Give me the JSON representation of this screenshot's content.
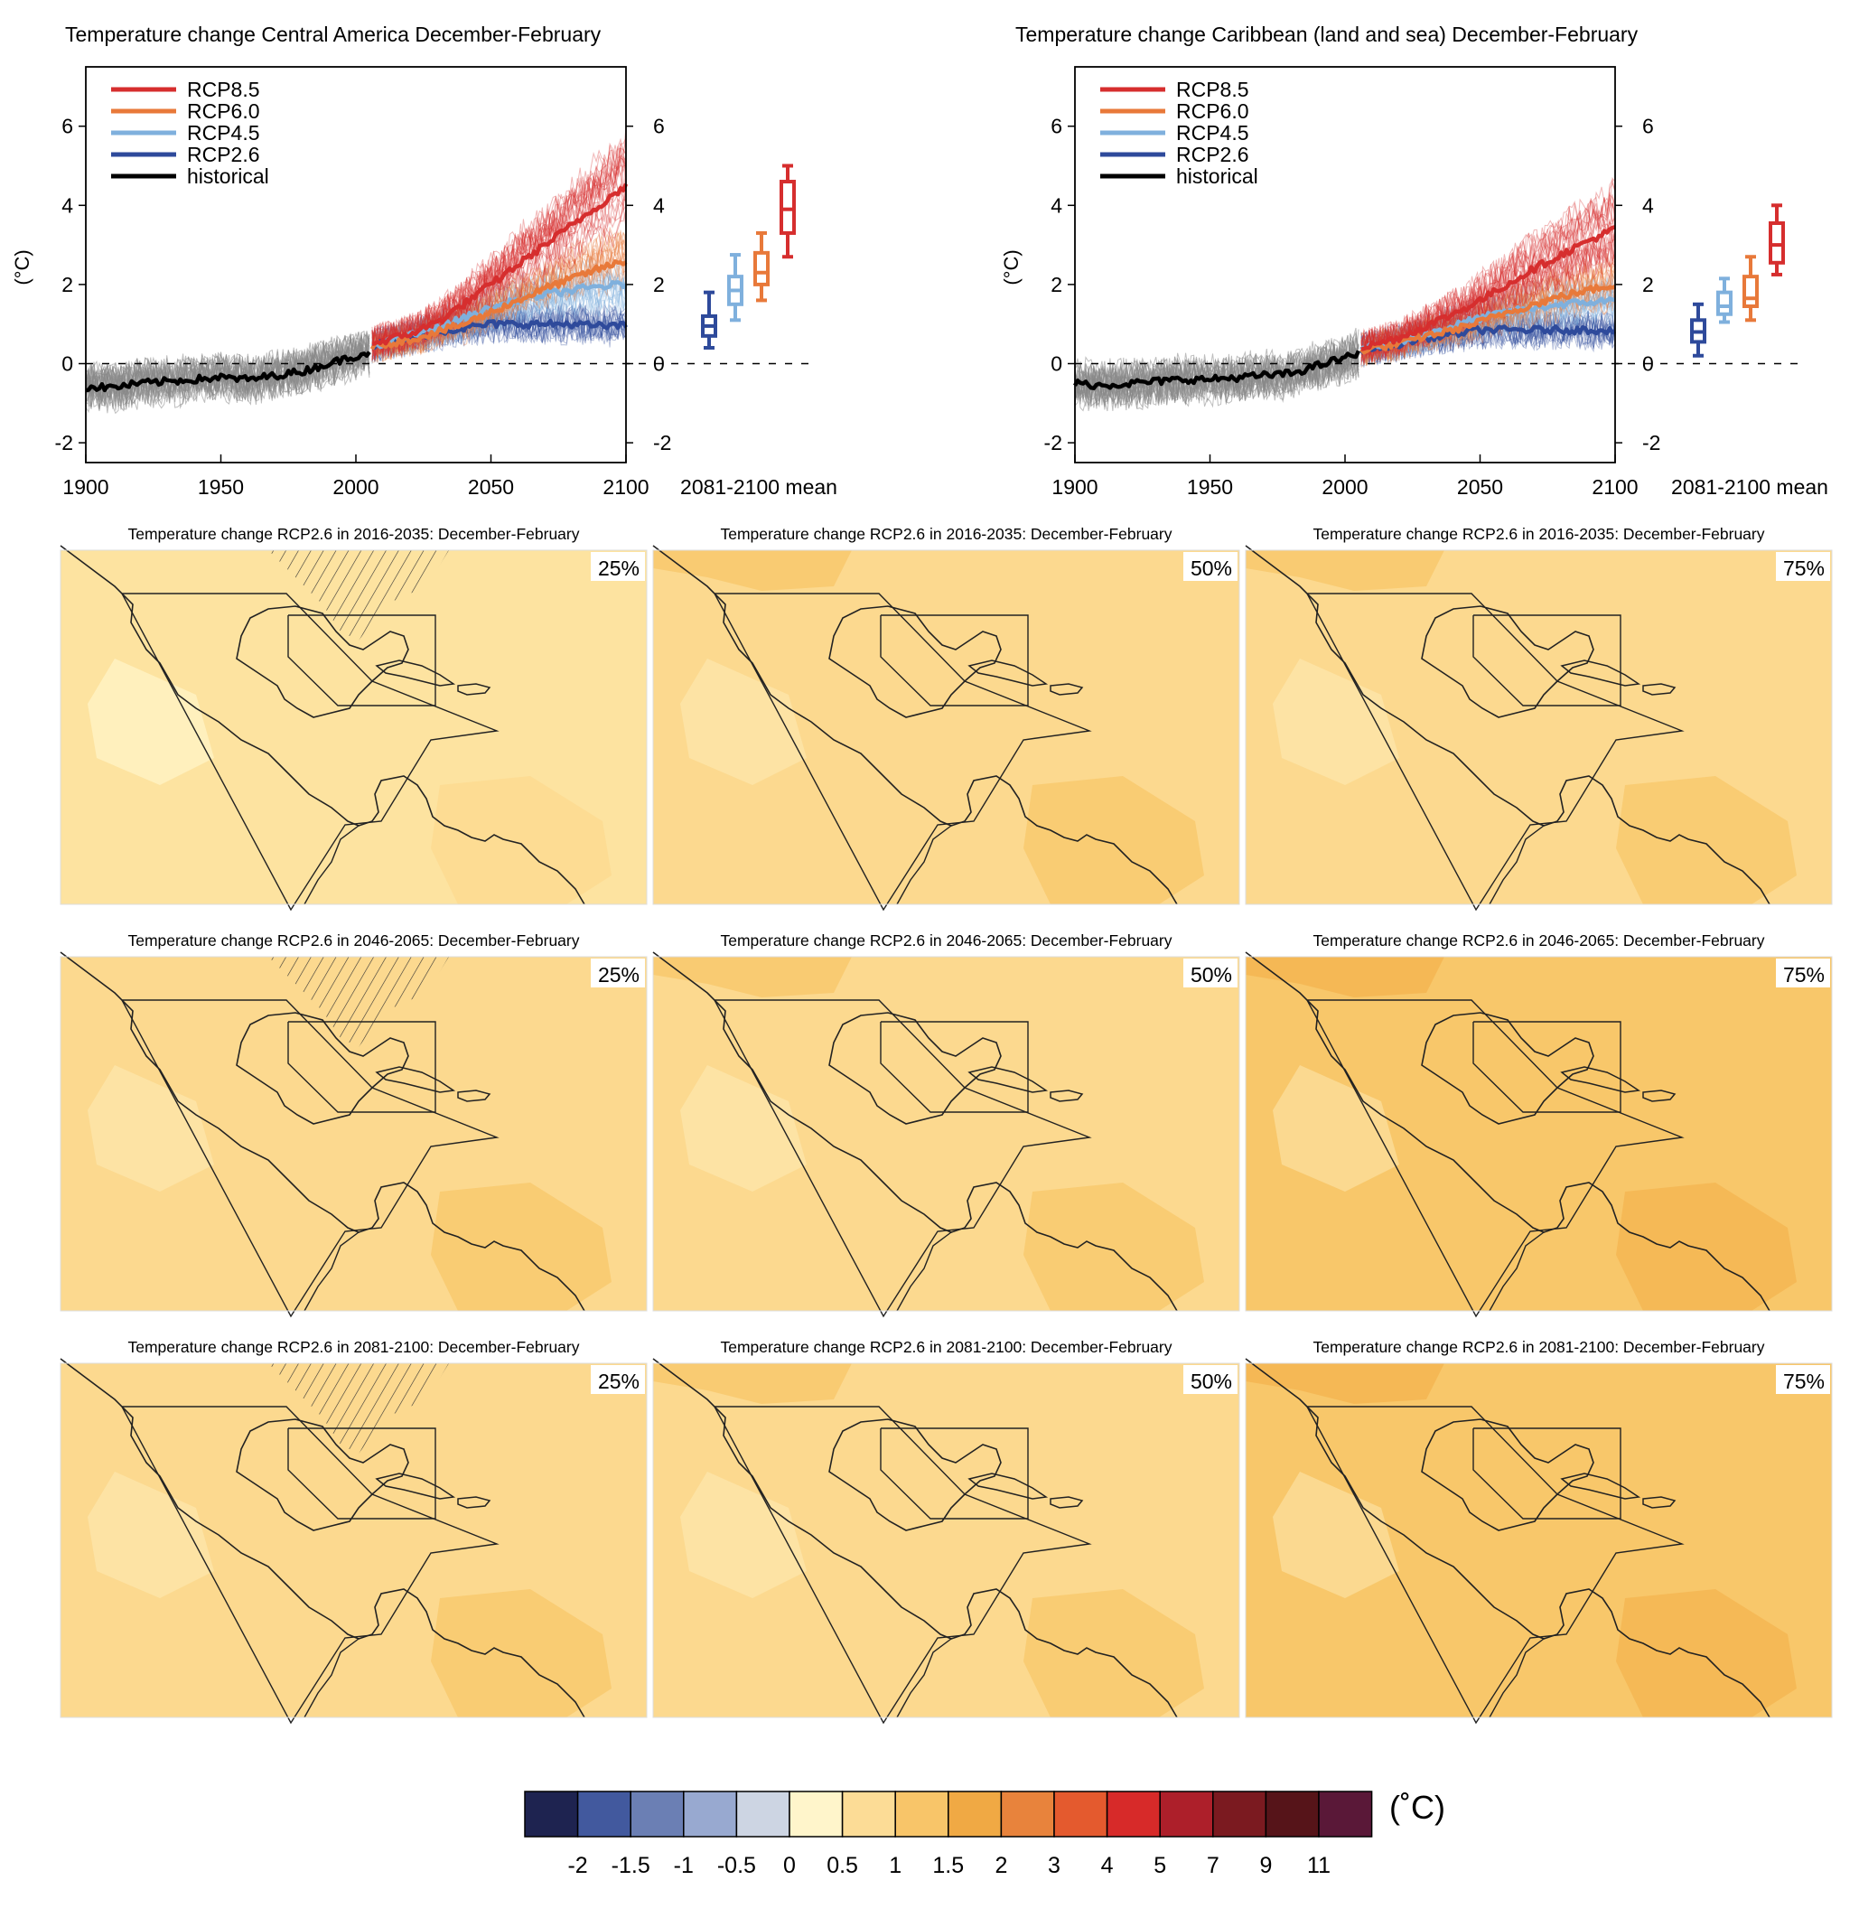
{
  "colors": {
    "rcp85": "#d62e2e",
    "rcp60": "#e8793a",
    "rcp45": "#7fb0dd",
    "rcp26": "#2e4a9b",
    "historical": "#000000",
    "model_spread": "#888888"
  },
  "chart_data": [
    {
      "type": "line",
      "title": "Temperature change Central America December-February",
      "ylabel": "(°C)",
      "xlim": [
        1900,
        2100
      ],
      "ylim": [
        -2.5,
        7.5
      ],
      "xticks": [
        1900,
        1950,
        2000,
        2050,
        2100
      ],
      "yticks": [
        -2,
        0,
        2,
        4,
        6
      ],
      "legend_position": "top-left",
      "grid": false,
      "series": [
        {
          "name": "RCP8.5",
          "key": "rcp85",
          "x": [
            2006,
            2020,
            2030,
            2040,
            2050,
            2060,
            2070,
            2080,
            2090,
            2100
          ],
          "y": [
            0.5,
            0.75,
            1.05,
            1.5,
            2.0,
            2.5,
            3.0,
            3.5,
            4.0,
            4.5
          ]
        },
        {
          "name": "RCP6.0",
          "key": "rcp60",
          "x": [
            2006,
            2020,
            2030,
            2040,
            2050,
            2060,
            2070,
            2080,
            2090,
            2100
          ],
          "y": [
            0.45,
            0.6,
            0.8,
            1.0,
            1.3,
            1.6,
            1.9,
            2.15,
            2.4,
            2.6
          ]
        },
        {
          "name": "RCP4.5",
          "key": "rcp45",
          "x": [
            2006,
            2020,
            2030,
            2040,
            2050,
            2060,
            2070,
            2080,
            2090,
            2100
          ],
          "y": [
            0.45,
            0.7,
            0.9,
            1.15,
            1.4,
            1.6,
            1.75,
            1.85,
            1.95,
            2.0
          ]
        },
        {
          "name": "RCP2.6",
          "key": "rcp26",
          "x": [
            2006,
            2020,
            2030,
            2040,
            2050,
            2060,
            2070,
            2080,
            2090,
            2100
          ],
          "y": [
            0.45,
            0.65,
            0.8,
            0.9,
            1.0,
            1.0,
            1.0,
            1.0,
            0.95,
            0.95
          ]
        },
        {
          "name": "historical",
          "key": "historical",
          "x": [
            1900,
            1910,
            1920,
            1930,
            1940,
            1950,
            1960,
            1970,
            1980,
            1990,
            2000,
            2005
          ],
          "y": [
            -0.6,
            -0.6,
            -0.5,
            -0.45,
            -0.4,
            -0.35,
            -0.4,
            -0.3,
            -0.2,
            0.0,
            0.2,
            0.3
          ]
        }
      ],
      "boxes_label": "2081-2100 mean",
      "boxes": [
        {
          "key": "rcp26",
          "whisker_low": 0.4,
          "q1": 0.7,
          "median": 0.95,
          "q3": 1.2,
          "whisker_high": 1.8
        },
        {
          "key": "rcp45",
          "whisker_low": 1.1,
          "q1": 1.5,
          "median": 1.85,
          "q3": 2.2,
          "whisker_high": 2.75
        },
        {
          "key": "rcp60",
          "whisker_low": 1.6,
          "q1": 2.0,
          "median": 2.3,
          "q3": 2.8,
          "whisker_high": 3.3
        },
        {
          "key": "rcp85",
          "whisker_low": 2.7,
          "q1": 3.3,
          "median": 3.9,
          "q3": 4.6,
          "whisker_high": 5.0
        }
      ]
    },
    {
      "type": "line",
      "title": "Temperature change Caribbean (land and sea) December-February",
      "ylabel": "(°C)",
      "xlim": [
        1900,
        2100
      ],
      "ylim": [
        -2.5,
        7.5
      ],
      "xticks": [
        1900,
        1950,
        2000,
        2050,
        2100
      ],
      "yticks": [
        -2,
        0,
        2,
        4,
        6
      ],
      "legend_position": "top-left",
      "grid": false,
      "series": [
        {
          "name": "RCP8.5",
          "key": "rcp85",
          "x": [
            2006,
            2020,
            2030,
            2040,
            2050,
            2060,
            2070,
            2080,
            2090,
            2100
          ],
          "y": [
            0.4,
            0.65,
            0.95,
            1.25,
            1.6,
            2.0,
            2.4,
            2.75,
            3.1,
            3.4
          ]
        },
        {
          "name": "RCP6.0",
          "key": "rcp60",
          "x": [
            2006,
            2020,
            2030,
            2040,
            2050,
            2060,
            2070,
            2080,
            2090,
            2100
          ],
          "y": [
            0.35,
            0.5,
            0.7,
            0.85,
            1.05,
            1.3,
            1.5,
            1.7,
            1.85,
            2.0
          ]
        },
        {
          "name": "RCP4.5",
          "key": "rcp45",
          "x": [
            2006,
            2020,
            2030,
            2040,
            2050,
            2060,
            2070,
            2080,
            2090,
            2100
          ],
          "y": [
            0.35,
            0.55,
            0.75,
            0.95,
            1.15,
            1.3,
            1.4,
            1.5,
            1.55,
            1.6
          ]
        },
        {
          "name": "RCP2.6",
          "key": "rcp26",
          "x": [
            2006,
            2020,
            2030,
            2040,
            2050,
            2060,
            2070,
            2080,
            2090,
            2100
          ],
          "y": [
            0.35,
            0.5,
            0.65,
            0.75,
            0.85,
            0.85,
            0.85,
            0.85,
            0.85,
            0.85
          ]
        },
        {
          "name": "historical",
          "key": "historical",
          "x": [
            1900,
            1910,
            1920,
            1930,
            1940,
            1950,
            1960,
            1970,
            1980,
            1990,
            2000,
            2005
          ],
          "y": [
            -0.5,
            -0.55,
            -0.5,
            -0.45,
            -0.4,
            -0.4,
            -0.35,
            -0.3,
            -0.25,
            -0.05,
            0.15,
            0.25
          ]
        }
      ],
      "boxes_label": "2081-2100 mean",
      "boxes": [
        {
          "key": "rcp26",
          "whisker_low": 0.2,
          "q1": 0.55,
          "median": 0.8,
          "q3": 1.1,
          "whisker_high": 1.5
        },
        {
          "key": "rcp45",
          "whisker_low": 1.05,
          "q1": 1.25,
          "median": 1.45,
          "q3": 1.8,
          "whisker_high": 2.15
        },
        {
          "key": "rcp60",
          "whisker_low": 1.1,
          "q1": 1.45,
          "median": 1.65,
          "q3": 2.2,
          "whisker_high": 2.7
        },
        {
          "key": "rcp85",
          "whisker_low": 2.25,
          "q1": 2.55,
          "median": 3.0,
          "q3": 3.55,
          "whisker_high": 4.0
        }
      ]
    },
    {
      "type": "heatmap",
      "panels": [
        {
          "title": "Temperature change RCP2.6 in 2016-2035: December-February",
          "percentile": "25%",
          "base": "#fde3a0",
          "hatched": true
        },
        {
          "title": "Temperature change RCP2.6 in 2016-2035: December-February",
          "percentile": "50%",
          "base": "#fcd98f",
          "hatched": false
        },
        {
          "title": "Temperature change RCP2.6 in 2016-2035: December-February",
          "percentile": "75%",
          "base": "#fcd98f",
          "hatched": false
        },
        {
          "title": "Temperature change RCP2.6 in 2046-2065: December-February",
          "percentile": "25%",
          "base": "#fcd98f",
          "hatched": true
        },
        {
          "title": "Temperature change RCP2.6 in 2046-2065: December-February",
          "percentile": "50%",
          "base": "#fcd98f",
          "hatched": false
        },
        {
          "title": "Temperature change RCP2.6 in 2046-2065: December-February",
          "percentile": "75%",
          "base": "#f8c76a",
          "hatched": false
        },
        {
          "title": "Temperature change RCP2.6 in 2081-2100: December-February",
          "percentile": "25%",
          "base": "#fcd98f",
          "hatched": true
        },
        {
          "title": "Temperature change RCP2.6 in 2081-2100: December-February",
          "percentile": "50%",
          "base": "#fcd98f",
          "hatched": false
        },
        {
          "title": "Temperature change RCP2.6 in 2081-2100: December-February",
          "percentile": "75%",
          "base": "#f8c76a",
          "hatched": false
        }
      ],
      "colorbar": {
        "unit": "(˚C)",
        "colors": [
          "#1e2350",
          "#42599e",
          "#6b7fb4",
          "#98a9d0",
          "#cdd5e3",
          "#fff5cb",
          "#fcdc96",
          "#f8c569",
          "#f0a944",
          "#e8833c",
          "#e45a2e",
          "#d72a29",
          "#ad1f2a",
          "#7b1a20",
          "#561419",
          "#5a1838"
        ],
        "labels": [
          "-2",
          "-1.5",
          "-1",
          "-0.5",
          "0",
          "0.5",
          "1",
          "1.5",
          "2",
          "3",
          "4",
          "5",
          "7",
          "9",
          "11"
        ]
      }
    }
  ]
}
